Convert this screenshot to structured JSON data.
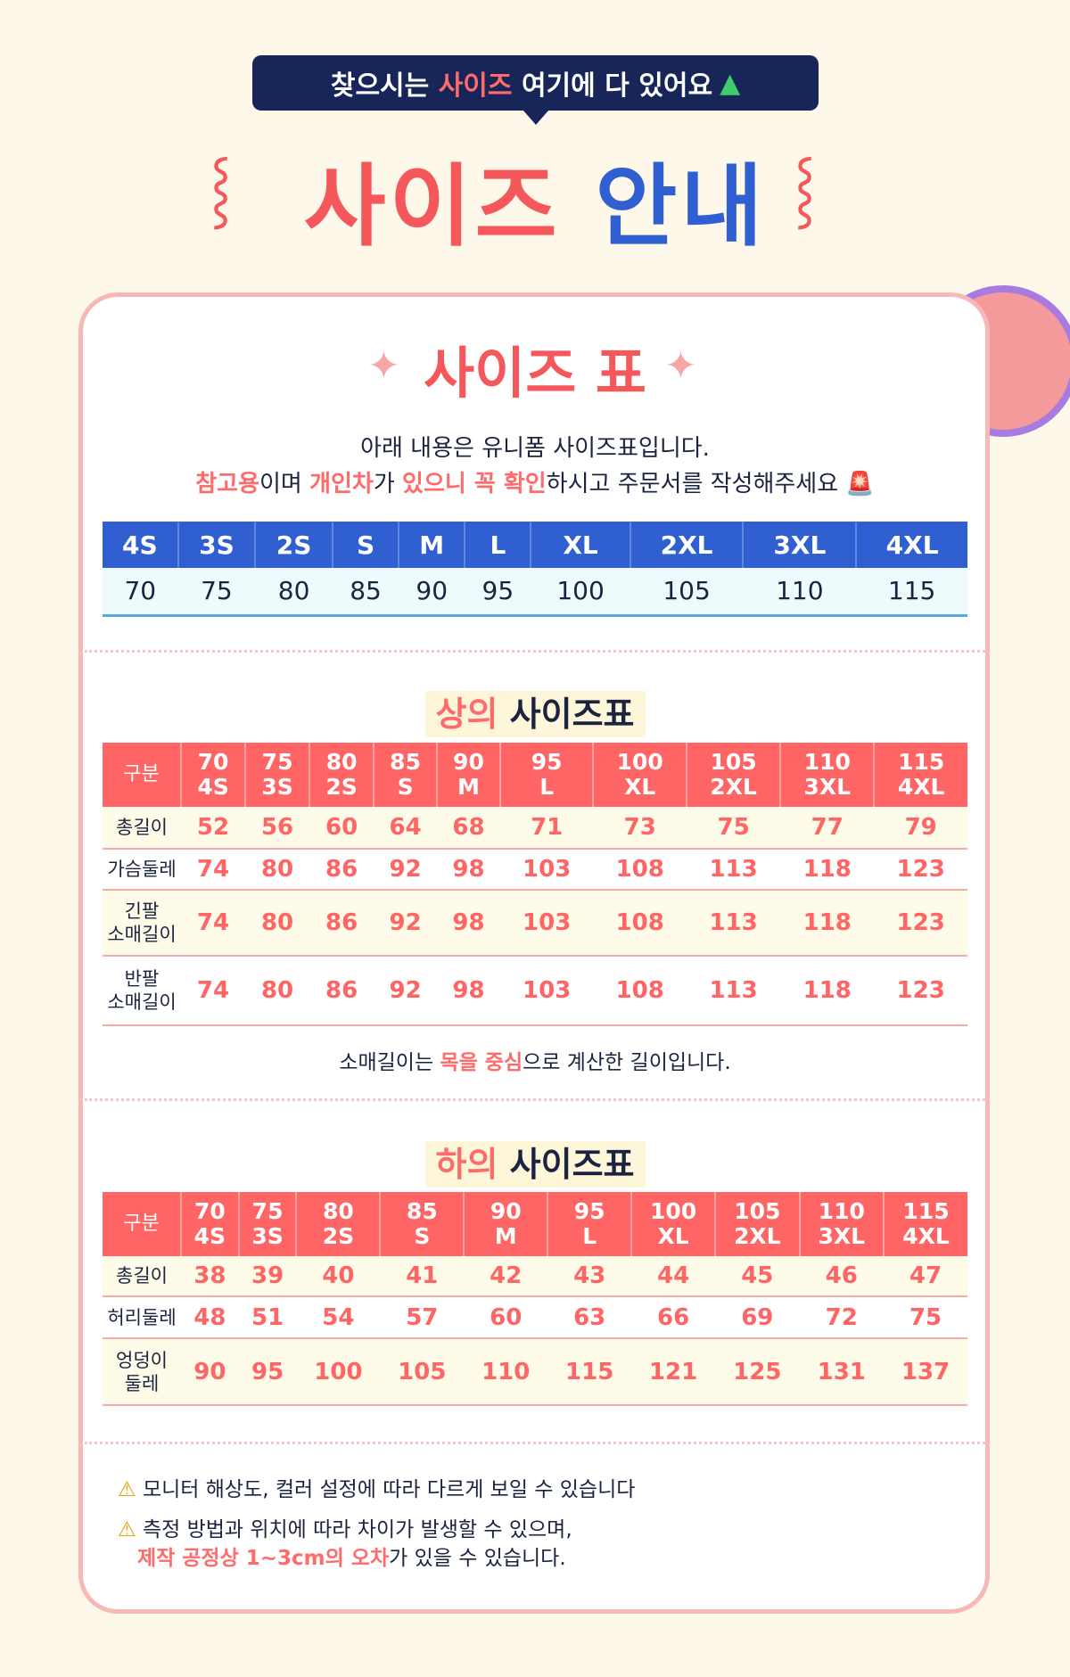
{
  "banner": {
    "pre": "찾으시는 ",
    "highlight": "사이즈",
    "post": " 여기에 다 있어요",
    "icon": "green-tshirt-icon"
  },
  "title": {
    "part1": "사이즈",
    "part2": "안내"
  },
  "card": {
    "heading": "사이즈 표",
    "intro_line1": "아래 내용은 유니폼 사이즈표입니다.",
    "intro_line2": [
      {
        "t": "참고용",
        "h": true
      },
      {
        "t": "이며 ",
        "h": false
      },
      {
        "t": "개인차",
        "h": true
      },
      {
        "t": "가 ",
        "h": false
      },
      {
        "t": "있으니 꼭 확인",
        "h": true
      },
      {
        "t": "하시고 주문서를 작성해주세요",
        "h": false
      }
    ],
    "intro_icon": "siren-icon",
    "size_map": {
      "labels": [
        "4S",
        "3S",
        "2S",
        "S",
        "M",
        "L",
        "XL",
        "2XL",
        "3XL",
        "4XL"
      ],
      "values": [
        "70",
        "75",
        "80",
        "85",
        "90",
        "95",
        "100",
        "105",
        "110",
        "115"
      ]
    },
    "top": {
      "title_h": "상의",
      "title_rest": "사이즈표",
      "corner": "구분",
      "cols": [
        [
          "70",
          "4S"
        ],
        [
          "75",
          "3S"
        ],
        [
          "80",
          "2S"
        ],
        [
          "85",
          "S"
        ],
        [
          "90",
          "M"
        ],
        [
          "95",
          "L"
        ],
        [
          "100",
          "XL"
        ],
        [
          "105",
          "2XL"
        ],
        [
          "110",
          "3XL"
        ],
        [
          "115",
          "4XL"
        ]
      ],
      "rows": [
        {
          "label": "총길이",
          "values": [
            "52",
            "56",
            "60",
            "64",
            "68",
            "71",
            "73",
            "75",
            "77",
            "79"
          ]
        },
        {
          "label": "가슴둘레",
          "values": [
            "74",
            "80",
            "86",
            "92",
            "98",
            "103",
            "108",
            "113",
            "118",
            "123"
          ]
        },
        {
          "label": "긴팔\n소매길이",
          "values": [
            "74",
            "80",
            "86",
            "92",
            "98",
            "103",
            "108",
            "113",
            "118",
            "123"
          ]
        },
        {
          "label": "반팔\n소매길이",
          "values": [
            "74",
            "80",
            "86",
            "92",
            "98",
            "103",
            "108",
            "113",
            "118",
            "123"
          ]
        }
      ],
      "note": [
        {
          "t": "소매길이는 ",
          "h": false
        },
        {
          "t": "목을 중심",
          "h": true
        },
        {
          "t": "으로 계산한 길이입니다.",
          "h": false
        }
      ]
    },
    "bottom": {
      "title_h": "하의",
      "title_rest": "사이즈표",
      "corner": "구분",
      "cols": [
        [
          "70",
          "4S"
        ],
        [
          "75",
          "3S"
        ],
        [
          "80",
          "2S"
        ],
        [
          "85",
          "S"
        ],
        [
          "90",
          "M"
        ],
        [
          "95",
          "L"
        ],
        [
          "100",
          "XL"
        ],
        [
          "105",
          "2XL"
        ],
        [
          "110",
          "3XL"
        ],
        [
          "115",
          "4XL"
        ]
      ],
      "rows": [
        {
          "label": "총길이",
          "values": [
            "38",
            "39",
            "40",
            "41",
            "42",
            "43",
            "44",
            "45",
            "46",
            "47"
          ]
        },
        {
          "label": "허리둘레",
          "values": [
            "48",
            "51",
            "54",
            "57",
            "60",
            "63",
            "66",
            "69",
            "72",
            "75"
          ]
        },
        {
          "label": "엉덩이\n둘레",
          "values": [
            "90",
            "95",
            "100",
            "105",
            "110",
            "115",
            "121",
            "125",
            "131",
            "137"
          ]
        }
      ]
    },
    "warnings": {
      "icon": "warning-icon",
      "w1": "모니터 해상도, 컬러 설정에 따라 다르게 보일 수 있습니다",
      "w2_line1": "측정 방법과 위치에 따라 차이가 발생할 수 있으며,",
      "w2_h": "제작 공정상 1~3cm의 오차",
      "w2_rest": "가 있을 수 있습니다."
    }
  },
  "colors": {
    "coral": "#ff6565",
    "blue": "#2f5fd1",
    "navy": "#172558",
    "bg": "#fdf8e9"
  }
}
